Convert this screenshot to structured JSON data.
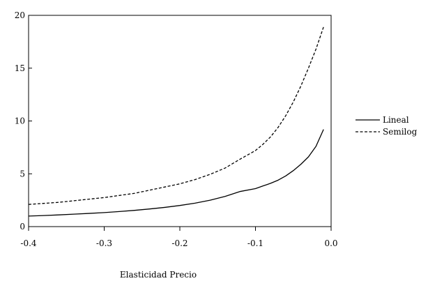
{
  "chart_data": {
    "type": "line",
    "title": "",
    "xlabel": "Elasticidad Precio",
    "ylabel": "",
    "xlim": [
      -0.4,
      0.0
    ],
    "ylim": [
      0,
      20
    ],
    "x_ticks": [
      "-0.4",
      "-0.3",
      "-0.2",
      "-0.1",
      "0.0"
    ],
    "y_ticks": [
      "0",
      "5",
      "10",
      "15",
      "20"
    ],
    "grid": false,
    "legend_position": "right",
    "x": [
      -0.4,
      -0.38,
      -0.36,
      -0.34,
      -0.32,
      -0.3,
      -0.28,
      -0.26,
      -0.24,
      -0.22,
      -0.2,
      -0.18,
      -0.16,
      -0.14,
      -0.12,
      -0.1,
      -0.09,
      -0.08,
      -0.07,
      -0.06,
      -0.05,
      -0.04,
      -0.03,
      -0.02,
      -0.01
    ],
    "series": [
      {
        "name": "Lineal",
        "style": "solid",
        "color": "#000000",
        "values": [
          1.0,
          1.05,
          1.11,
          1.18,
          1.25,
          1.33,
          1.43,
          1.54,
          1.67,
          1.82,
          2.0,
          2.22,
          2.5,
          2.86,
          3.33,
          3.6,
          3.85,
          4.1,
          4.4,
          4.8,
          5.3,
          5.9,
          6.6,
          7.6,
          9.2
        ]
      },
      {
        "name": "Semilog",
        "style": "dashed",
        "color": "#000000",
        "values": [
          2.1,
          2.2,
          2.3,
          2.45,
          2.6,
          2.75,
          2.95,
          3.15,
          3.45,
          3.75,
          4.05,
          4.45,
          4.95,
          5.55,
          6.4,
          7.2,
          7.8,
          8.5,
          9.4,
          10.5,
          11.8,
          13.3,
          15.0,
          16.8,
          18.9
        ]
      }
    ]
  }
}
